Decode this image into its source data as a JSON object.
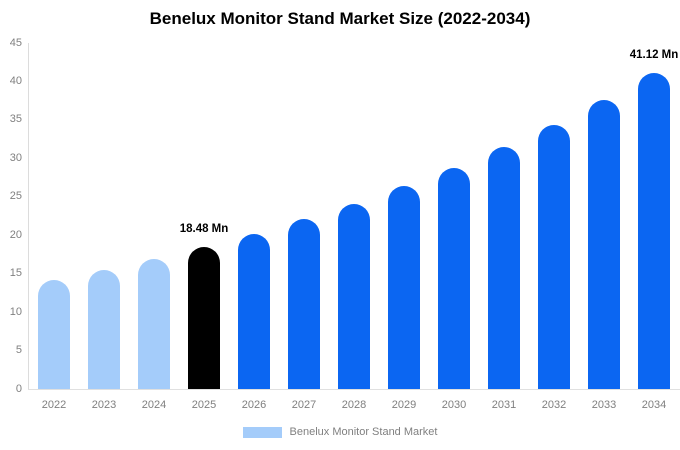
{
  "chart_data": {
    "type": "bar",
    "title": "Benelux Monitor Stand Market Size (2022-2034)",
    "unit": "Mn",
    "categories": [
      "2022",
      "2023",
      "2024",
      "2025",
      "2026",
      "2027",
      "2028",
      "2029",
      "2030",
      "2031",
      "2032",
      "2033",
      "2034"
    ],
    "values": [
      14.2,
      15.5,
      16.9,
      18.48,
      20.2,
      22.1,
      24.1,
      26.4,
      28.8,
      31.5,
      34.4,
      37.6,
      41.12
    ],
    "ylim": [
      0,
      45
    ],
    "yticks": [
      0,
      5,
      10,
      15,
      20,
      25,
      30,
      35,
      40,
      45
    ],
    "grid": false,
    "bar_styles": [
      "historical",
      "historical",
      "historical",
      "highlight",
      "forecast",
      "forecast",
      "forecast",
      "forecast",
      "forecast",
      "forecast",
      "forecast",
      "forecast",
      "forecast"
    ],
    "colors": {
      "historical": "#a4ccfa",
      "highlight": "#000000",
      "forecast": "#0b66f2"
    },
    "axis_text_color": "#808080",
    "labeled_points": [
      {
        "category": "2025",
        "label": "18.48 Mn"
      },
      {
        "category": "2034",
        "label": "41.12 Mn"
      }
    ],
    "legend_position": "bottom",
    "legend": {
      "label": "Benelux Monitor Stand Market",
      "swatch_color": "#a4ccfa"
    }
  }
}
